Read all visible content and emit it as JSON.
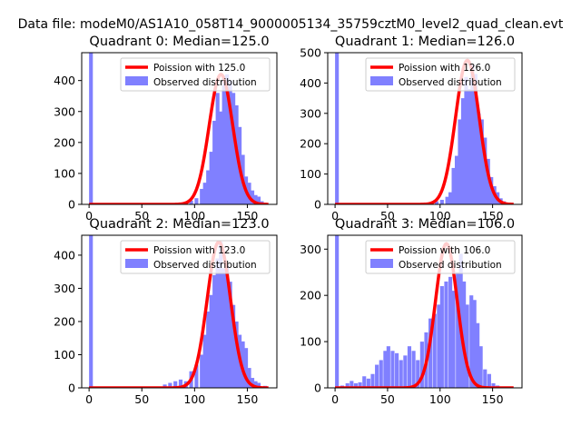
{
  "figure": {
    "suptitle": "Data file: modeM0/AS1A10_058T14_9000005134_35759cztM0_level2_quad_clean.evt"
  },
  "colors": {
    "hist": "#8080ff",
    "poisson": "#ff0000",
    "axis": "#000000"
  },
  "chart_data": [
    {
      "type": "bar",
      "title": "Quadrant 0: Median=125.0",
      "legend": {
        "placement": "top-right",
        "poisson_label": "Poission with 125.0",
        "hist_label": "Observed distribution"
      },
      "xlim": [
        -7,
        178
      ],
      "ylim": [
        0,
        490
      ],
      "xticks": [
        0,
        50,
        100,
        150
      ],
      "yticks": [
        0,
        100,
        200,
        300,
        400
      ],
      "bin_width": 3.57,
      "bins": [
        [
          0,
          490
        ],
        [
          60,
          1
        ],
        [
          75,
          2
        ],
        [
          80,
          4
        ],
        [
          85,
          6
        ],
        [
          90,
          8
        ],
        [
          95,
          12
        ],
        [
          100,
          20
        ],
        [
          105,
          50
        ],
        [
          108,
          70
        ],
        [
          111,
          110
        ],
        [
          114,
          170
        ],
        [
          117,
          270
        ],
        [
          120,
          360
        ],
        [
          123,
          300
        ],
        [
          126,
          415
        ],
        [
          129,
          420
        ],
        [
          132,
          400
        ],
        [
          135,
          360
        ],
        [
          138,
          320
        ],
        [
          141,
          250
        ],
        [
          144,
          160
        ],
        [
          147,
          90
        ],
        [
          150,
          70
        ],
        [
          153,
          45
        ],
        [
          156,
          30
        ],
        [
          159,
          25
        ],
        [
          162,
          10
        ],
        [
          165,
          4
        ]
      ],
      "poisson": {
        "mean": 125.0,
        "peak": 420,
        "x_start": 0,
        "x_end": 170
      }
    },
    {
      "type": "bar",
      "title": "Quadrant 1: Median=126.0",
      "legend": {
        "placement": "top-right",
        "poisson_label": "Poission with 126.0",
        "hist_label": "Observed distribution"
      },
      "xlim": [
        -7,
        178
      ],
      "ylim": [
        0,
        500
      ],
      "xticks": [
        0,
        50,
        100,
        150
      ],
      "yticks": [
        0,
        100,
        200,
        300,
        400,
        500
      ],
      "bin_width": 3.57,
      "bins": [
        [
          0,
          500
        ],
        [
          55,
          2
        ],
        [
          65,
          3
        ],
        [
          75,
          4
        ],
        [
          85,
          6
        ],
        [
          95,
          10
        ],
        [
          100,
          15
        ],
        [
          105,
          25
        ],
        [
          108,
          40
        ],
        [
          111,
          120
        ],
        [
          114,
          160
        ],
        [
          117,
          280
        ],
        [
          120,
          350
        ],
        [
          123,
          420
        ],
        [
          126,
          380
        ],
        [
          129,
          460
        ],
        [
          132,
          430
        ],
        [
          135,
          300
        ],
        [
          138,
          280
        ],
        [
          141,
          220
        ],
        [
          144,
          150
        ],
        [
          147,
          90
        ],
        [
          150,
          60
        ],
        [
          153,
          40
        ],
        [
          156,
          20
        ],
        [
          159,
          10
        ],
        [
          162,
          6
        ],
        [
          165,
          3
        ]
      ],
      "poisson": {
        "mean": 126.0,
        "peak": 475,
        "x_start": 0,
        "x_end": 170
      }
    },
    {
      "type": "bar",
      "title": "Quadrant 2: Median=123.0",
      "legend": {
        "placement": "top-right",
        "poisson_label": "Poission with 123.0",
        "hist_label": "Observed distribution"
      },
      "xlim": [
        -7,
        178
      ],
      "ylim": [
        0,
        460
      ],
      "xticks": [
        0,
        50,
        100,
        150
      ],
      "yticks": [
        0,
        100,
        200,
        300,
        400
      ],
      "bin_width": 3.57,
      "bins": [
        [
          0,
          460
        ],
        [
          70,
          10
        ],
        [
          75,
          15
        ],
        [
          80,
          20
        ],
        [
          85,
          25
        ],
        [
          90,
          20
        ],
        [
          95,
          50
        ],
        [
          100,
          70
        ],
        [
          105,
          100
        ],
        [
          108,
          160
        ],
        [
          111,
          230
        ],
        [
          114,
          280
        ],
        [
          117,
          340
        ],
        [
          120,
          390
        ],
        [
          123,
          440
        ],
        [
          126,
          360
        ],
        [
          129,
          370
        ],
        [
          132,
          320
        ],
        [
          135,
          250
        ],
        [
          138,
          200
        ],
        [
          141,
          160
        ],
        [
          144,
          140
        ],
        [
          147,
          120
        ],
        [
          150,
          60
        ],
        [
          153,
          30
        ],
        [
          156,
          20
        ],
        [
          159,
          15
        ],
        [
          165,
          6
        ]
      ],
      "poisson": {
        "mean": 123.0,
        "peak": 440,
        "x_start": 0,
        "x_end": 170
      }
    },
    {
      "type": "bar",
      "title": "Quadrant 3: Median=106.0",
      "legend": {
        "placement": "top-right",
        "poisson_label": "Poission with 106.0",
        "hist_label": "Observed distribution"
      },
      "xlim": [
        -7,
        178
      ],
      "ylim": [
        0,
        330
      ],
      "xticks": [
        0,
        50,
        100,
        150
      ],
      "yticks": [
        0,
        100,
        200,
        300
      ],
      "bin_width": 3.57,
      "bins": [
        [
          0,
          330
        ],
        [
          5,
          5
        ],
        [
          10,
          10
        ],
        [
          14,
          15
        ],
        [
          18,
          10
        ],
        [
          22,
          12
        ],
        [
          26,
          25
        ],
        [
          30,
          20
        ],
        [
          34,
          30
        ],
        [
          38,
          50
        ],
        [
          42,
          60
        ],
        [
          46,
          80
        ],
        [
          49,
          90
        ],
        [
          53,
          80
        ],
        [
          57,
          75
        ],
        [
          61,
          60
        ],
        [
          65,
          70
        ],
        [
          69,
          90
        ],
        [
          73,
          80
        ],
        [
          77,
          60
        ],
        [
          81,
          100
        ],
        [
          85,
          120
        ],
        [
          89,
          150
        ],
        [
          93,
          160
        ],
        [
          97,
          180
        ],
        [
          100,
          220
        ],
        [
          104,
          230
        ],
        [
          108,
          240
        ],
        [
          111,
          210
        ],
        [
          115,
          250
        ],
        [
          118,
          290
        ],
        [
          121,
          230
        ],
        [
          124,
          180
        ],
        [
          128,
          200
        ],
        [
          131,
          190
        ],
        [
          134,
          140
        ],
        [
          137,
          90
        ],
        [
          141,
          40
        ],
        [
          145,
          30
        ],
        [
          149,
          10
        ],
        [
          153,
          5
        ]
      ],
      "poisson": {
        "mean": 106.0,
        "peak": 312,
        "x_start": 0,
        "x_end": 170
      }
    }
  ]
}
